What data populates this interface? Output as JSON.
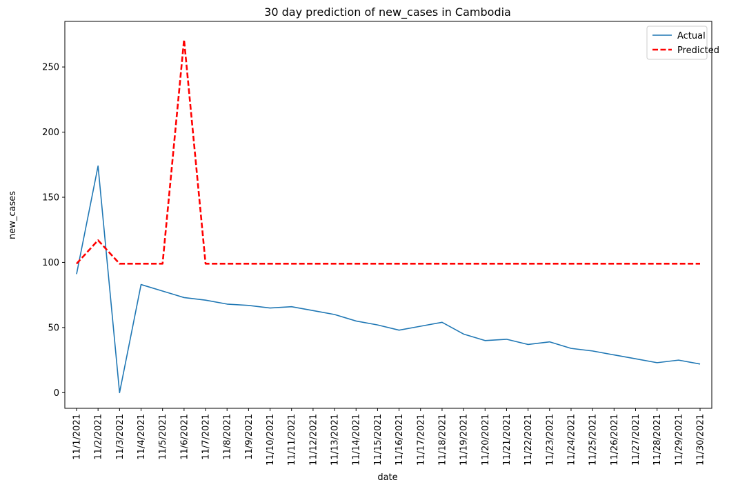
{
  "chart_data": {
    "type": "line",
    "title": "30 day prediction of new_cases in Cambodia",
    "xlabel": "date",
    "ylabel": "new_cases",
    "ylim": [
      -12,
      285
    ],
    "yticks": [
      0,
      50,
      100,
      150,
      200,
      250
    ],
    "grid": false,
    "legend_position": "top-right",
    "categories": [
      "11/1/2021",
      "11/2/2021",
      "11/3/2021",
      "11/4/2021",
      "11/5/2021",
      "11/6/2021",
      "11/7/2021",
      "11/8/2021",
      "11/9/2021",
      "11/10/2021",
      "11/11/2021",
      "11/12/2021",
      "11/13/2021",
      "11/14/2021",
      "11/15/2021",
      "11/16/2021",
      "11/17/2021",
      "11/18/2021",
      "11/19/2021",
      "11/20/2021",
      "11/21/2021",
      "11/22/2021",
      "11/23/2021",
      "11/24/2021",
      "11/25/2021",
      "11/26/2021",
      "11/27/2021",
      "11/28/2021",
      "11/29/2021",
      "11/30/2021"
    ],
    "series": [
      {
        "name": "Actual",
        "color": "#1f77b4",
        "style": "solid",
        "values": [
          91,
          174,
          0,
          83,
          78,
          73,
          71,
          68,
          67,
          65,
          66,
          63,
          60,
          55,
          52,
          48,
          51,
          54,
          45,
          40,
          41,
          37,
          39,
          34,
          32,
          29,
          26,
          23,
          25,
          22
        ]
      },
      {
        "name": "Predicted",
        "color": "#ff0000",
        "style": "dashed",
        "values": [
          99,
          117,
          99,
          99,
          99,
          271,
          99,
          99,
          99,
          99,
          99,
          99,
          99,
          99,
          99,
          99,
          99,
          99,
          99,
          99,
          99,
          99,
          99,
          99,
          99,
          99,
          99,
          99,
          99,
          99
        ]
      }
    ]
  }
}
